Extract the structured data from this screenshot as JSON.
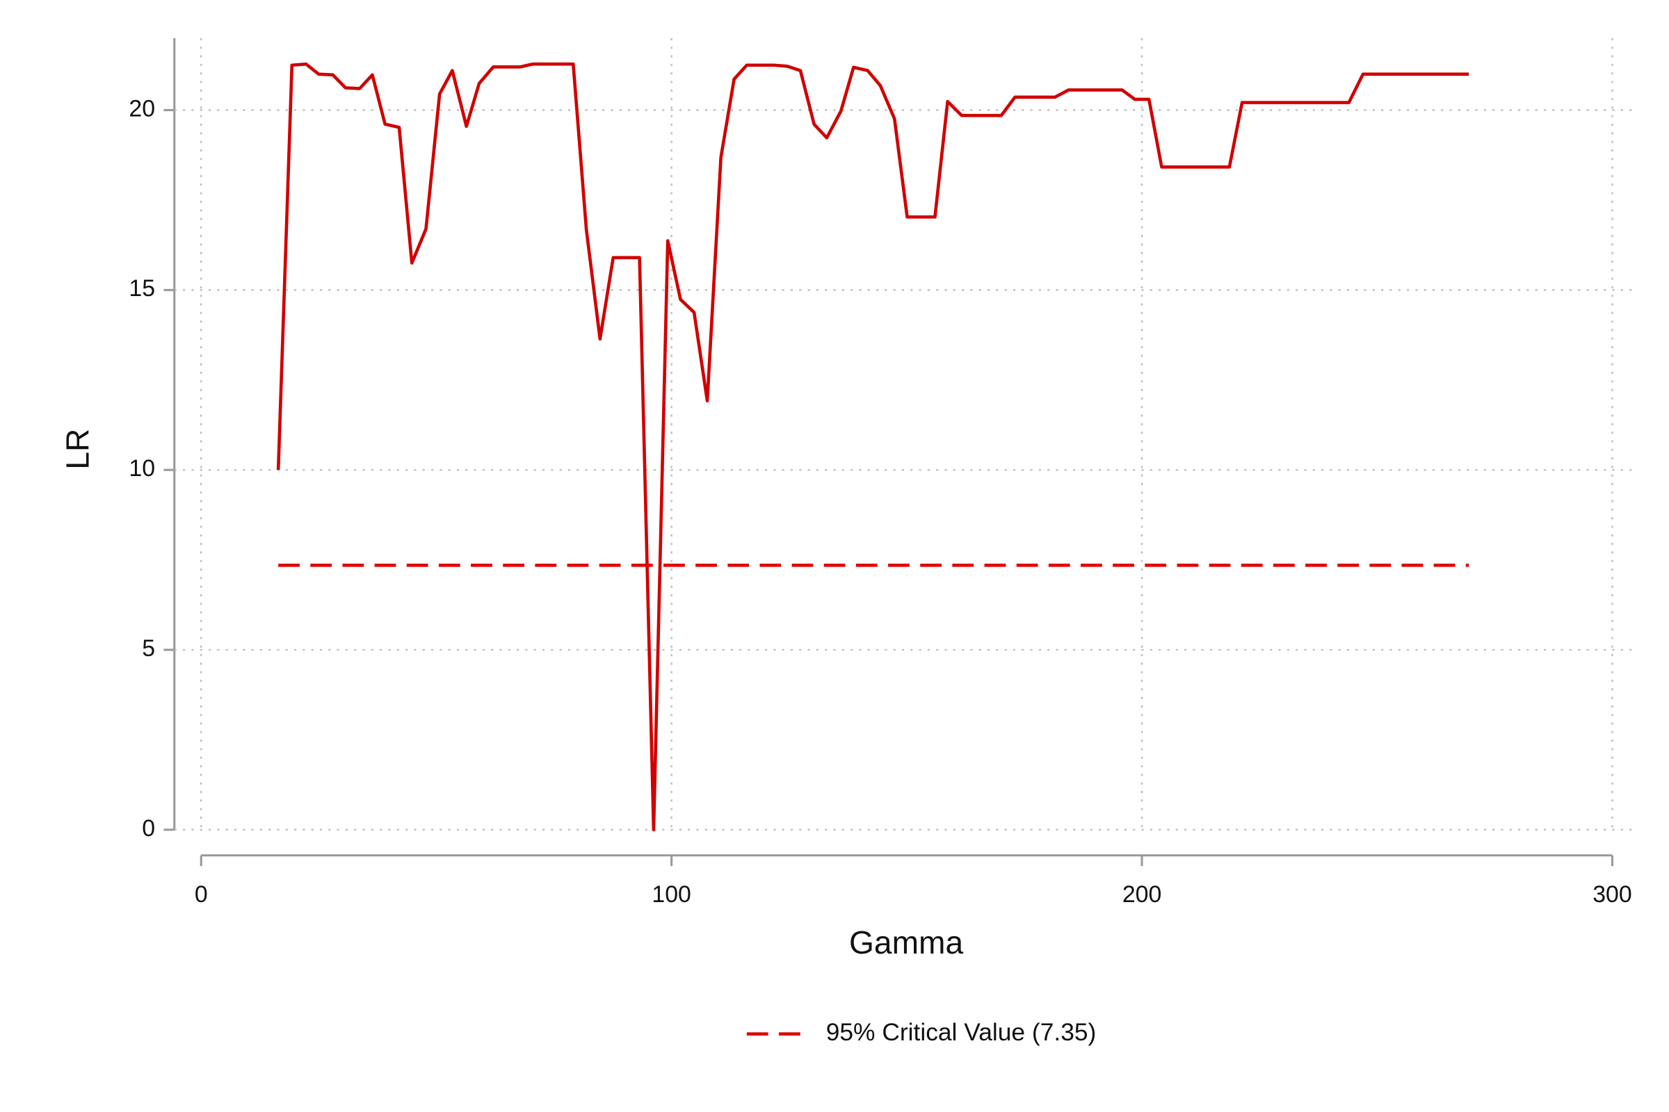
{
  "chart_data": {
    "type": "line",
    "x_label": "Gamma",
    "y_label": "LR",
    "xlim": [
      0,
      300
    ],
    "xticks": [
      0,
      100,
      200,
      300
    ],
    "ylim": [
      0,
      22
    ],
    "yticks": [
      0,
      5,
      10,
      15,
      20
    ],
    "grid": true,
    "legend": "bottom",
    "series": [
      {
        "color": "#d00000",
        "dash": false,
        "x": [
          16.4,
          19.3,
          22.3,
          25.0,
          28.0,
          30.7,
          33.7,
          36.4,
          39.1,
          42.1,
          44.8,
          47.8,
          50.7,
          53.4,
          56.4,
          59.1,
          62.1,
          64.8,
          67.8,
          70.5,
          73.5,
          76.2,
          79.1,
          81.9,
          84.8,
          87.6,
          90.5,
          93.2,
          96.2,
          99.2,
          101.9,
          104.8,
          107.6,
          110.5,
          113.3,
          116.0,
          118.9,
          121.7,
          124.6,
          127.4,
          130.3,
          133.0,
          136.0,
          138.7,
          141.7,
          144.4,
          147.4,
          150.1,
          153.1,
          156.0,
          158.7,
          161.7,
          164.4,
          167.4,
          170.1,
          173.0,
          175.8,
          178.8,
          181.5,
          184.4,
          187.2,
          190.1,
          192.9,
          195.8,
          198.5,
          201.5,
          204.2,
          207.2,
          209.9,
          212.9,
          215.6,
          218.6,
          221.3,
          224.2,
          226.9,
          229.9,
          232.7,
          235.6,
          238.4,
          241.3,
          244.0,
          247.0,
          269.5
        ],
        "values": [
          10,
          21.25,
          21.28,
          21.0,
          20.98,
          20.62,
          20.6,
          20.98,
          19.61,
          19.52,
          15.75,
          16.7,
          20.45,
          21.1,
          19.55,
          20.74,
          21.2,
          21.2,
          21.2,
          21.28,
          21.28,
          21.28,
          21.28,
          16.67,
          13.64,
          15.9,
          15.9,
          15.9,
          0,
          16.37,
          14.74,
          14.38,
          11.92,
          18.69,
          20.86,
          21.25,
          21.25,
          21.25,
          21.22,
          21.1,
          19.61,
          19.23,
          19.97,
          21.19,
          21.1,
          20.68,
          19.76,
          17.03,
          17.03,
          17.03,
          20.24,
          19.85,
          19.85,
          19.85,
          19.85,
          20.36,
          20.36,
          20.36,
          20.36,
          20.56,
          20.56,
          20.56,
          20.56,
          20.56,
          20.3,
          20.3,
          18.42,
          18.42,
          18.42,
          18.42,
          18.42,
          18.42,
          20.21,
          20.21,
          20.21,
          20.21,
          20.21,
          20.21,
          20.21,
          20.21,
          20.21,
          21.0,
          21.0
        ]
      },
      {
        "name": "95% Critical Value (7.35)",
        "color": "#e00000",
        "dash": true,
        "x": [
          16.4,
          269.5
        ],
        "values": [
          7.35,
          7.35
        ]
      }
    ]
  }
}
